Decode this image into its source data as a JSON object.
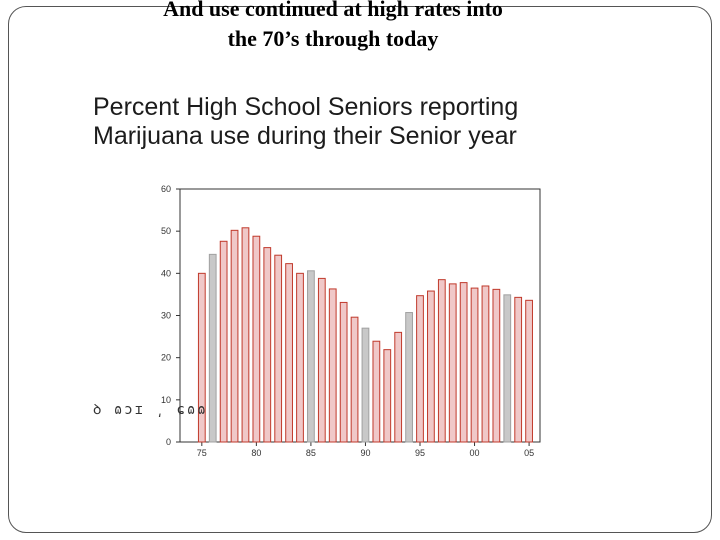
{
  "slide": {
    "title_line1": "And use continued at high rates  into",
    "title_line2": "the 70’s through today"
  },
  "chart_data": {
    "type": "bar",
    "title_line1": "Percent High School Seniors reporting",
    "title_line2": "Marijuana use during their Senior year",
    "xlabel": "",
    "ylabel": "",
    "ylim": [
      0,
      60
    ],
    "yticks": [
      0,
      10,
      20,
      30,
      40,
      50,
      60
    ],
    "xlim": [
      1973,
      2006
    ],
    "xticks": [
      {
        "year": 1975,
        "label": "75"
      },
      {
        "year": 1980,
        "label": "80"
      },
      {
        "year": 1985,
        "label": "85"
      },
      {
        "year": 1990,
        "label": "90"
      },
      {
        "year": 1995,
        "label": "95"
      },
      {
        "year": 2000,
        "label": "00"
      },
      {
        "year": 2005,
        "label": "05"
      }
    ],
    "grid": false,
    "legend": "none",
    "colors": {
      "outline_red": "#c0392b",
      "fill_pink": "#f0c8c8",
      "fill_grey": "#c8c8c8",
      "outline_grey": "#a0a0a0"
    },
    "x": [
      1975,
      1976,
      1977,
      1978,
      1979,
      1980,
      1981,
      1982,
      1983,
      1984,
      1985,
      1986,
      1987,
      1988,
      1989,
      1990,
      1991,
      1992,
      1993,
      1994,
      1995,
      1996,
      1997,
      1998,
      1999,
      2000,
      2001,
      2002,
      2003,
      2004,
      2005
    ],
    "values": [
      40,
      44.5,
      47.6,
      50.2,
      50.8,
      48.8,
      46.1,
      44.3,
      42.3,
      40,
      40.6,
      38.8,
      36.3,
      33.1,
      29.6,
      27,
      23.9,
      21.9,
      26,
      30.7,
      34.7,
      35.8,
      38.5,
      37.5,
      37.8,
      36.5,
      37,
      36.2,
      34.9,
      34.3,
      33.6
    ],
    "bar_style": [
      "red",
      "grey",
      "red",
      "red",
      "red",
      "red",
      "red",
      "red",
      "red",
      "red",
      "grey",
      "red",
      "red",
      "red",
      "red",
      "grey",
      "red",
      "red",
      "red",
      "grey",
      "red",
      "red",
      "red",
      "red",
      "red",
      "red",
      "red",
      "red",
      "grey",
      "red",
      "red"
    ]
  },
  "scribble_text": "ꝺ ɷɔɪ ͵ ɕɷɷ"
}
